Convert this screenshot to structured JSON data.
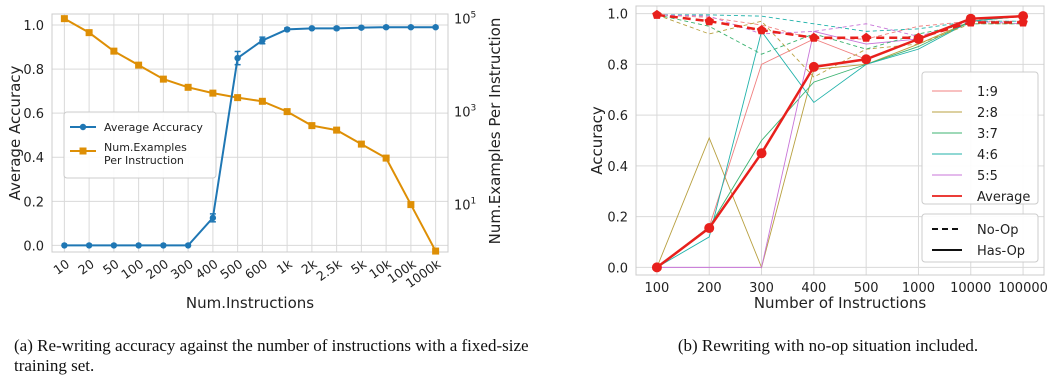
{
  "figure": {
    "caption_a": "(a) Re-writing accuracy against the number of instructions with a fixed-size training set.",
    "caption_b": "(b) Rewriting with no-op situation included."
  },
  "chart_data": [
    {
      "type": "line",
      "xlabel": "Num.Instructions",
      "ylabel": "Average Accuracy",
      "y2label": "Num.Examples Per Instruction",
      "categories": [
        "10",
        "20",
        "50",
        "100",
        "200",
        "300",
        "400",
        "500",
        "600",
        "1k",
        "2k",
        "2.5k",
        "5k",
        "10k",
        "100k",
        "1000k"
      ],
      "y_ticks": [
        "0.0",
        "0.2",
        "0.4",
        "0.6",
        "0.8",
        "1.0"
      ],
      "y2_ticks": [
        {
          "base": "10",
          "exp": "1",
          "value": 10
        },
        {
          "base": "10",
          "exp": "3",
          "value": 1000
        },
        {
          "base": "10",
          "exp": "5",
          "value": 100000
        }
      ],
      "ylim": [
        -0.03,
        1.05
      ],
      "y2_log_range": [
        -0.02,
        5.1
      ],
      "y2_scale": "log",
      "grid": true,
      "legend_position": "center-left",
      "series": [
        {
          "name": "Average Accuracy",
          "axis": "left",
          "color": "#1f77b4",
          "marker": "circle",
          "values": [
            0,
            0,
            0,
            0,
            0,
            0,
            0.125,
            0.85,
            0.93,
            0.98,
            0.985,
            0.985,
            0.988,
            0.99,
            0.99,
            0.99
          ],
          "error": [
            0,
            0,
            0,
            0,
            0,
            0,
            0.018,
            0.03,
            0.015,
            0.006,
            0.004,
            0.006,
            0.005,
            0.005,
            0.004,
            0.004
          ]
        },
        {
          "name": "Num.Examples Per Instruction",
          "legend_lines": [
            "Num.Examples",
            "Per Instruction"
          ],
          "axis": "right",
          "color": "#de8f05",
          "marker": "square",
          "values": [
            100000,
            50000,
            20000,
            10000,
            5000,
            3333,
            2500,
            2000,
            1667,
            1000,
            500,
            400,
            200,
            100,
            10,
            1
          ]
        }
      ]
    },
    {
      "type": "line",
      "xlabel": "Number of Instructions",
      "ylabel": "Accuracy",
      "categories": [
        "100",
        "200",
        "300",
        "400",
        "500",
        "1000",
        "10000",
        "100000"
      ],
      "y_ticks": [
        "0.0",
        "0.2",
        "0.4",
        "0.6",
        "0.8",
        "1.0"
      ],
      "ylim": [
        -0.03,
        1.03
      ],
      "grid": true,
      "legend_position": "right",
      "series": [
        {
          "name": "1:9",
          "style": "solid",
          "color": "#f08080",
          "values": [
            0.0,
            0.16,
            0.8,
            0.9,
            0.82,
            0.9,
            0.98,
            0.99
          ]
        },
        {
          "name": "2:8",
          "style": "solid",
          "color": "#b8a040",
          "values": [
            0.0,
            0.51,
            0.0,
            0.78,
            0.8,
            0.88,
            0.97,
            0.99
          ]
        },
        {
          "name": "3:7",
          "style": "solid",
          "color": "#3cb371",
          "values": [
            0.0,
            0.16,
            0.5,
            0.73,
            0.8,
            0.87,
            0.97,
            0.99
          ]
        },
        {
          "name": "4:6",
          "style": "solid",
          "color": "#20b2aa",
          "values": [
            0.0,
            0.12,
            0.93,
            0.65,
            0.8,
            0.86,
            0.97,
            0.99
          ]
        },
        {
          "name": "5:5",
          "style": "solid",
          "color": "#c875d8",
          "values": [
            0.0,
            0.0,
            0.0,
            0.93,
            0.88,
            0.9,
            0.98,
            0.99
          ]
        },
        {
          "name": "Average",
          "style": "solid",
          "color": "#e8201c",
          "values": [
            0.0,
            0.155,
            0.45,
            0.79,
            0.82,
            0.9,
            0.98,
            0.99
          ]
        },
        {
          "name": "1:9 No-Op",
          "style": "dashed",
          "color": "#f08080",
          "values": [
            0.995,
            0.985,
            0.955,
            0.9,
            0.9,
            0.95,
            0.97,
            0.97
          ]
        },
        {
          "name": "2:8 No-Op",
          "style": "dashed",
          "color": "#b8a040",
          "values": [
            0.995,
            0.92,
            0.97,
            0.75,
            0.86,
            0.88,
            0.96,
            0.96
          ]
        },
        {
          "name": "3:7 No-Op",
          "style": "dashed",
          "color": "#3cb371",
          "values": [
            0.995,
            0.95,
            0.84,
            0.92,
            0.86,
            0.92,
            0.96,
            0.96
          ]
        },
        {
          "name": "4:6 No-Op",
          "style": "dashed",
          "color": "#20b2aa",
          "values": [
            0.995,
            0.995,
            0.99,
            0.96,
            0.93,
            0.94,
            0.97,
            0.97
          ]
        },
        {
          "name": "5:5 No-Op",
          "style": "dashed",
          "color": "#c875d8",
          "values": [
            0.995,
            0.99,
            0.92,
            0.93,
            0.96,
            0.91,
            0.97,
            0.96
          ]
        },
        {
          "name": "Average No-Op",
          "style": "dashed",
          "color": "#e8201c",
          "values": [
            0.995,
            0.97,
            0.935,
            0.905,
            0.905,
            0.905,
            0.965,
            0.965
          ]
        }
      ],
      "legend_colors": [
        "1:9",
        "2:8",
        "3:7",
        "4:6",
        "5:5",
        "Average"
      ],
      "legend_styles": [
        "No-Op",
        "Has-Op"
      ]
    }
  ]
}
